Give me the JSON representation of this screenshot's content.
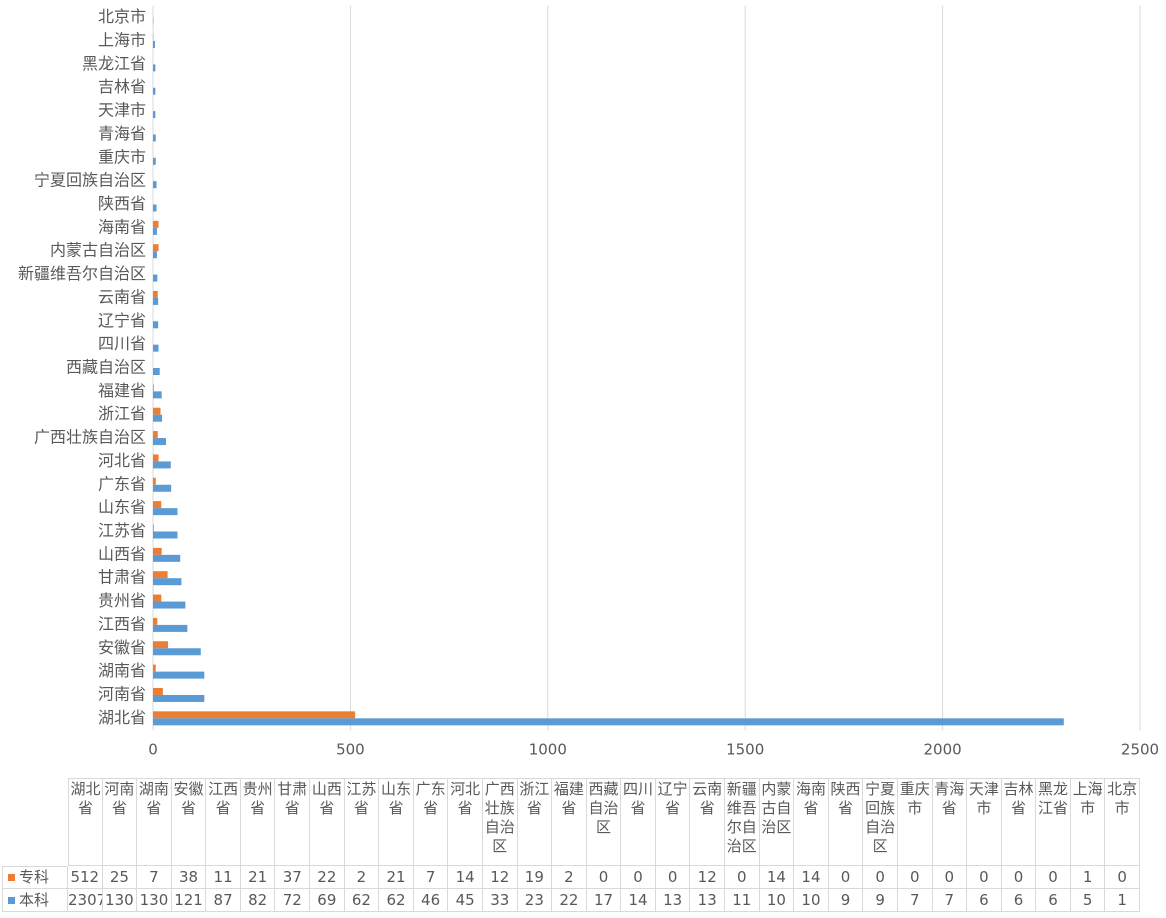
{
  "chart_data": {
    "type": "hbar",
    "categories": [
      "湖北省",
      "河南省",
      "湖南省",
      "安徽省",
      "江西省",
      "贵州省",
      "甘肃省",
      "山西省",
      "江苏省",
      "山东省",
      "广东省",
      "河北省",
      "广西壮族自治区",
      "浙江省",
      "福建省",
      "西藏自治区",
      "四川省",
      "辽宁省",
      "云南省",
      "新疆维吾尔自治区",
      "内蒙古自治区",
      "海南省",
      "陕西省",
      "宁夏回族自治区",
      "重庆市",
      "青海省",
      "天津市",
      "吉林省",
      "黑龙江省",
      "上海市",
      "北京市"
    ],
    "series": [
      {
        "name": "专科",
        "color": "#ed7d31",
        "values": [
          512,
          25,
          7,
          38,
          11,
          21,
          37,
          22,
          2,
          21,
          7,
          14,
          12,
          19,
          2,
          0,
          0,
          0,
          12,
          0,
          14,
          14,
          0,
          0,
          0,
          0,
          0,
          0,
          0,
          1,
          0
        ]
      },
      {
        "name": "本科",
        "color": "#5b9bd5",
        "values": [
          2307,
          130,
          130,
          121,
          87,
          82,
          72,
          69,
          62,
          62,
          46,
          45,
          33,
          23,
          22,
          17,
          14,
          13,
          13,
          11,
          10,
          10,
          9,
          9,
          7,
          7,
          6,
          6,
          6,
          5,
          1
        ]
      }
    ],
    "xlim": [
      0,
      2500
    ],
    "xticks": [
      0,
      500,
      1000,
      1500,
      2000,
      2500
    ],
    "grid": true,
    "data_table": true
  }
}
